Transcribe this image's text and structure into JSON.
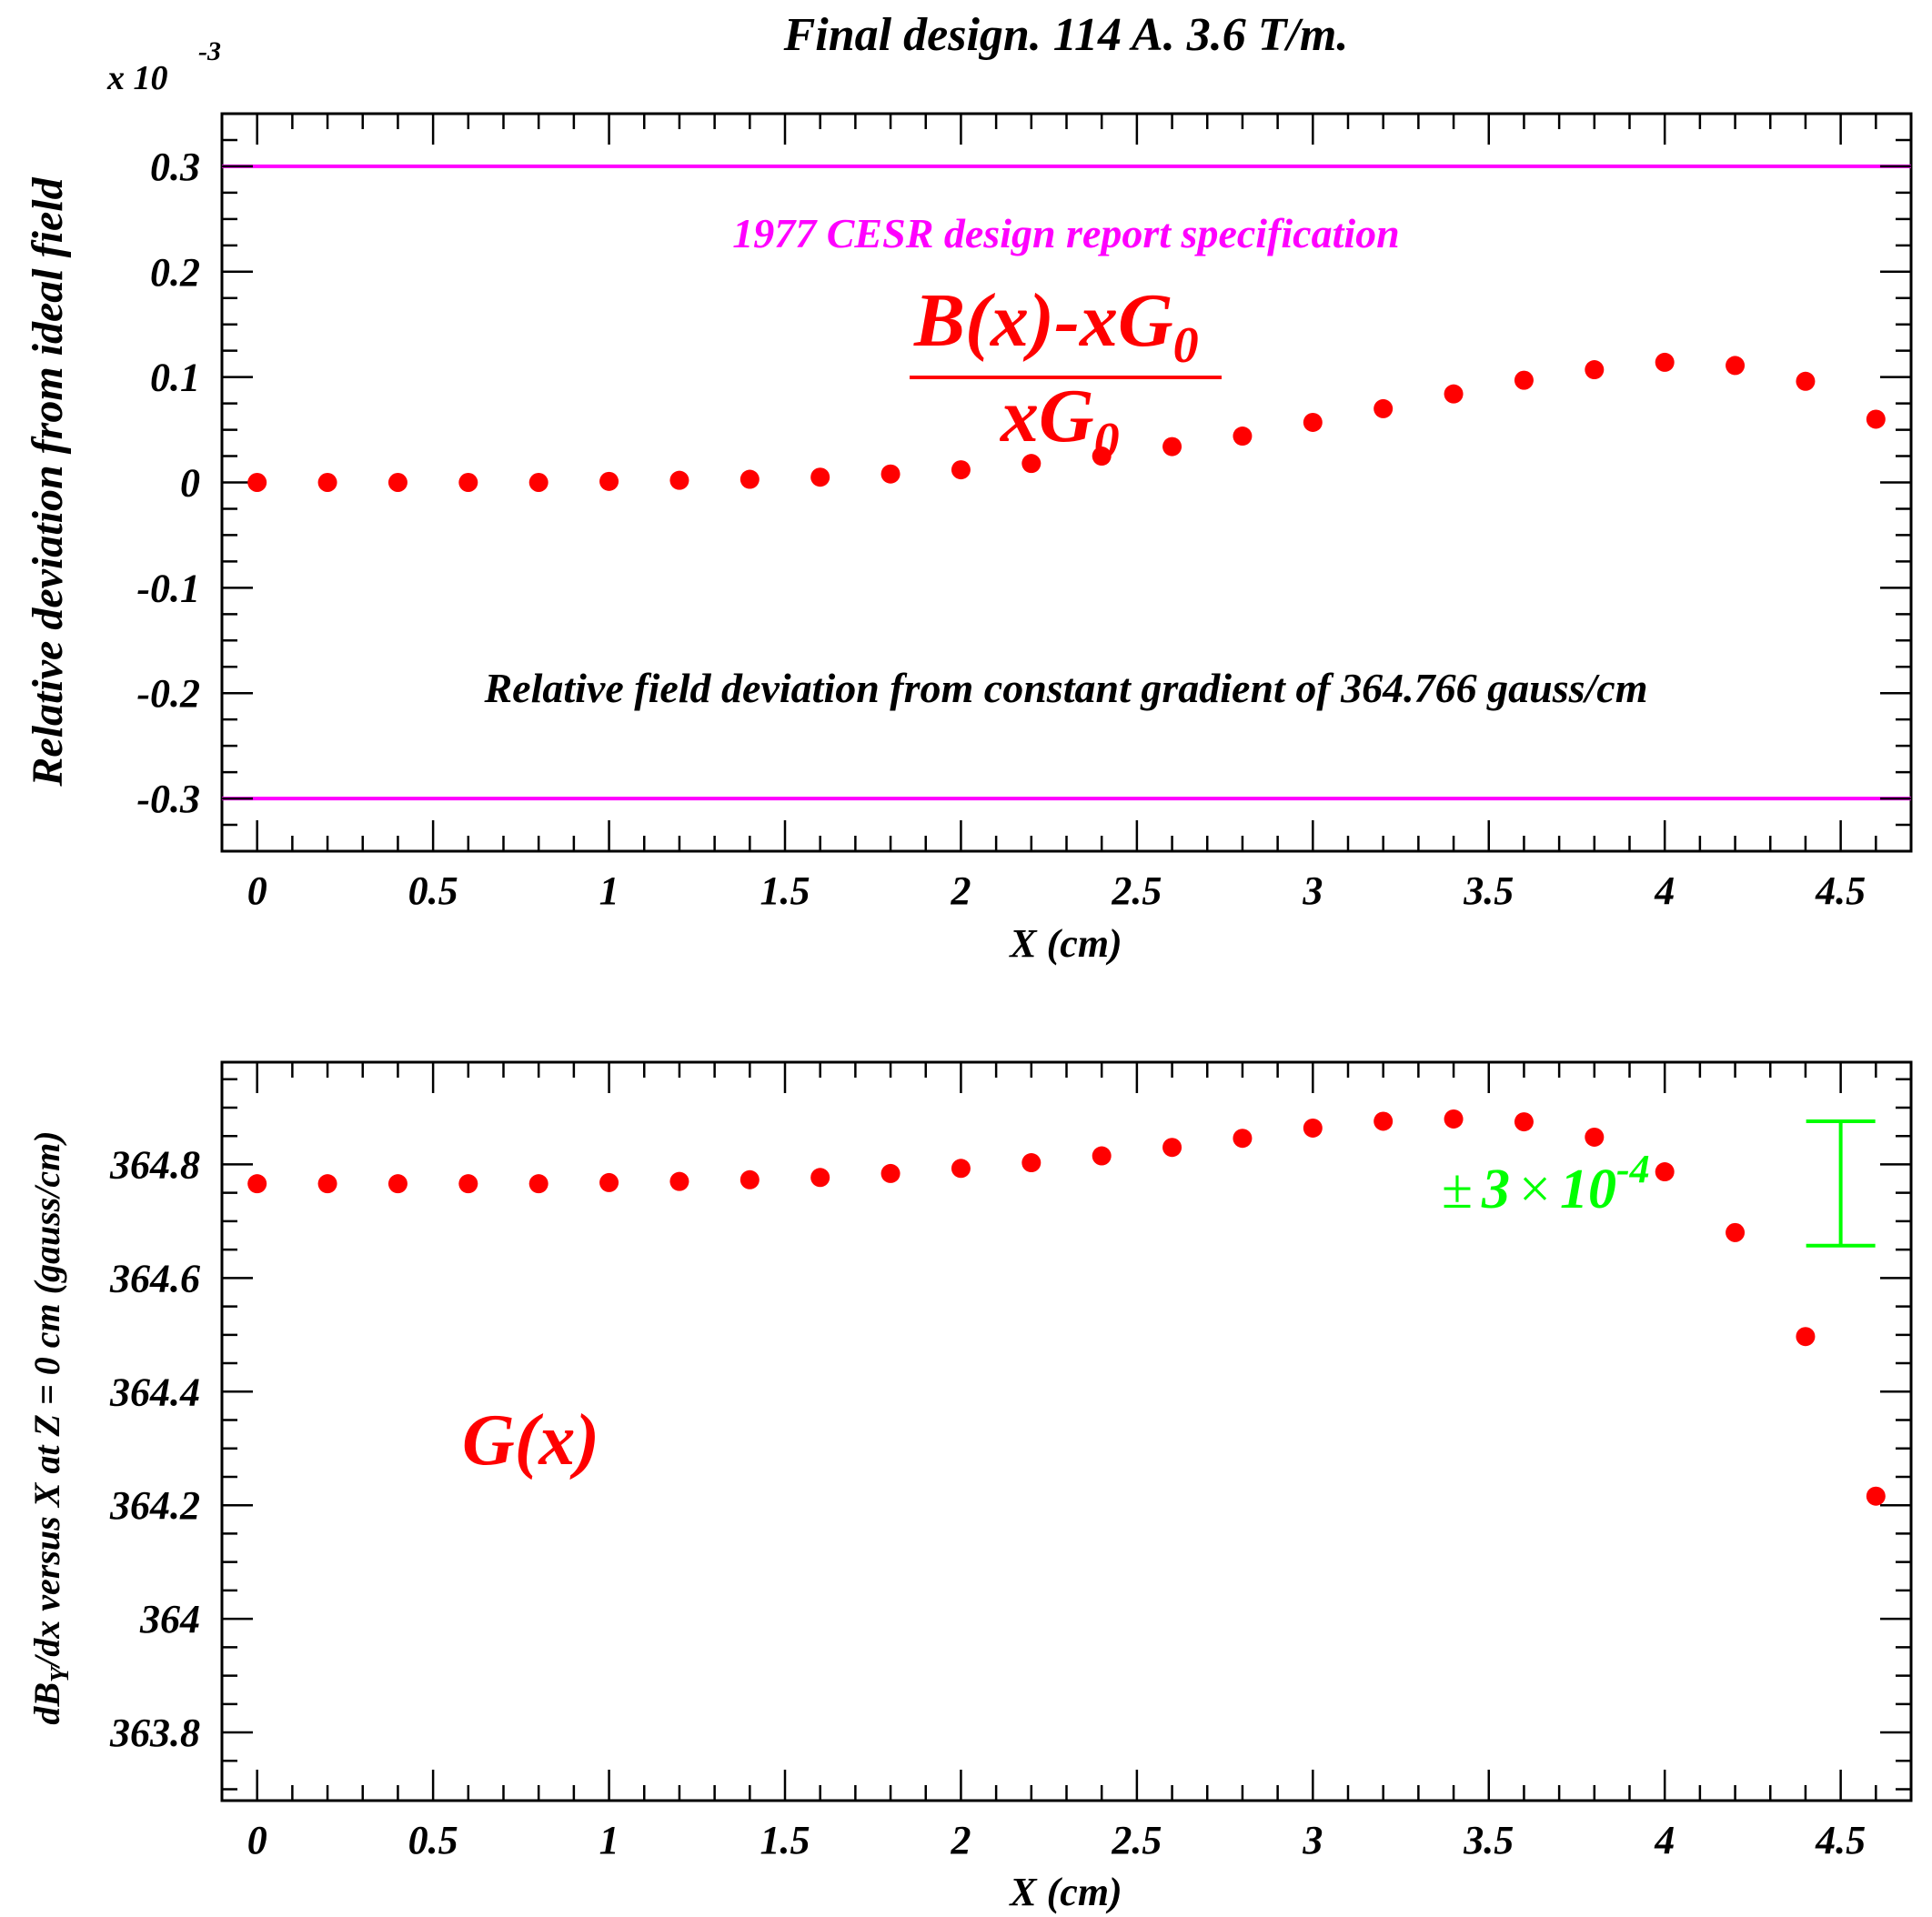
{
  "title": "Final design. 114 A. 3.6 T/m.",
  "colors": {
    "points": "#ff0000",
    "spec": "#ff00ff",
    "errbar": "#00ff00",
    "axes": "#000000"
  },
  "chart_data": [
    {
      "type": "scatter",
      "exponent_label": {
        "base": "x 10",
        "exp": "-3"
      },
      "ylabel": "Relative deviation from ideal field",
      "xlabel": "X (cm)",
      "xlim": [
        -0.1,
        4.7
      ],
      "ylim": [
        -0.35,
        0.35
      ],
      "xticks": [
        "0",
        "0.5",
        "1",
        "1.5",
        "2",
        "2.5",
        "3",
        "3.5",
        "4",
        "4.5"
      ],
      "yticks": [
        "-0.3",
        "-0.2",
        "-0.1",
        "0",
        "0.1",
        "0.2",
        "0.3"
      ],
      "spec_lines": [
        0.3,
        -0.3
      ],
      "spec_label": "1977 CESR design report specification",
      "formula": {
        "numerator": "B(x)-xG",
        "numerator_sub": "0",
        "denominator": "xG",
        "denominator_sub": "0"
      },
      "annotation": "Relative field deviation from constant gradient of 364.766 gauss/cm",
      "x": [
        0,
        0.2,
        0.4,
        0.6,
        0.8,
        1.0,
        1.2,
        1.4,
        1.6,
        1.8,
        2.0,
        2.2,
        2.4,
        2.6,
        2.8,
        3.0,
        3.2,
        3.4,
        3.6,
        3.8,
        4.0,
        4.2,
        4.4,
        4.6
      ],
      "y": [
        0,
        0,
        0,
        0,
        0,
        0.001,
        0.002,
        0.003,
        0.005,
        0.008,
        0.012,
        0.018,
        0.025,
        0.034,
        0.044,
        0.057,
        0.07,
        0.084,
        0.097,
        0.107,
        0.114,
        0.111,
        0.096,
        0.06
      ]
    },
    {
      "type": "scatter",
      "ylabel_parts": {
        "pre": "dB",
        "sub": "Y",
        "post": "/dx versus X at Z = 0 cm (gauss/cm)"
      },
      "xlabel": "X (cm)",
      "xlim": [
        -0.1,
        4.7
      ],
      "ylim": [
        363.68,
        364.98
      ],
      "xticks": [
        "0",
        "0.5",
        "1",
        "1.5",
        "2",
        "2.5",
        "3",
        "3.5",
        "4",
        "4.5"
      ],
      "yticks": [
        "363.8",
        "364",
        "364.2",
        "364.4",
        "364.6",
        "364.8"
      ],
      "series_label": "G(x)",
      "error_bar_label": {
        "pm": "±",
        "mantissa": "3",
        "times": "×",
        "base": "10",
        "exp": "-4"
      },
      "error_bar": {
        "x": 4.5,
        "y_low": 364.657,
        "y_high": 364.876
      },
      "x": [
        0,
        0.2,
        0.4,
        0.6,
        0.8,
        1.0,
        1.2,
        1.4,
        1.6,
        1.8,
        2.0,
        2.2,
        2.4,
        2.6,
        2.8,
        3.0,
        3.2,
        3.4,
        3.6,
        3.8,
        4.0,
        4.2,
        4.4,
        4.6
      ],
      "y": [
        364.766,
        364.766,
        364.766,
        364.766,
        364.766,
        364.768,
        364.77,
        364.773,
        364.777,
        364.784,
        364.793,
        364.803,
        364.815,
        364.83,
        364.846,
        364.864,
        364.876,
        364.88,
        364.875,
        364.848,
        364.787,
        364.68,
        364.497,
        364.216
      ]
    }
  ]
}
